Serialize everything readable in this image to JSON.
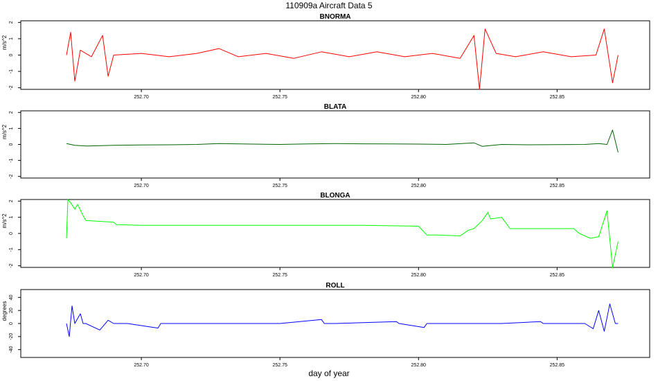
{
  "figure": {
    "title": "110909a   Aircraft Data 5",
    "xlabel": "day of year"
  },
  "chart_data": [
    {
      "type": "line",
      "title": "BNORMA",
      "ylabel": "m/s^2",
      "color": "#ff0000",
      "xlim": [
        252.6565,
        252.8834
      ],
      "ylim": [
        -2.1,
        2.1
      ],
      "xticks": [
        252.7,
        252.75,
        252.8,
        252.85
      ],
      "xtick_labels": [
        "252.70",
        "252.75",
        "252.80",
        "252.85"
      ],
      "yticks": [
        -2,
        -1,
        0,
        1,
        2
      ],
      "ytick_labels": [
        "-2",
        "-1",
        "0",
        "1",
        "2"
      ],
      "series": [
        {
          "x": [
            252.673,
            252.6745,
            252.676,
            252.678,
            252.682,
            252.686,
            252.688,
            252.69,
            252.7,
            252.71,
            252.72,
            252.728,
            252.735,
            252.745,
            252.755,
            252.765,
            252.775,
            252.785,
            252.795,
            252.805,
            252.815,
            252.82,
            252.822,
            252.824,
            252.828,
            252.835,
            252.845,
            252.855,
            252.864,
            252.867,
            252.87,
            252.872
          ],
          "y": [
            0.0,
            1.4,
            -1.6,
            0.3,
            -0.1,
            1.2,
            -1.3,
            0.0,
            0.1,
            -0.1,
            0.1,
            0.4,
            -0.1,
            0.1,
            -0.2,
            0.2,
            -0.1,
            0.2,
            -0.1,
            0.1,
            -0.2,
            1.2,
            -2.1,
            1.6,
            0.1,
            -0.1,
            0.2,
            -0.1,
            0.0,
            1.6,
            -1.7,
            0.0
          ]
        }
      ]
    },
    {
      "type": "line",
      "title": "BLATA",
      "ylabel": "m/s^2",
      "color": "#006400",
      "xlim": [
        252.6565,
        252.8834
      ],
      "ylim": [
        -2.1,
        2.1
      ],
      "xticks": [
        252.7,
        252.75,
        252.8,
        252.85
      ],
      "xtick_labels": [
        "252.70",
        "252.75",
        "252.80",
        "252.85"
      ],
      "yticks": [
        -2,
        -1,
        0,
        1,
        2
      ],
      "ytick_labels": [
        "-2",
        "-1",
        "0",
        "1",
        "2"
      ],
      "series": [
        {
          "x": [
            252.673,
            252.676,
            252.68,
            252.69,
            252.7,
            252.71,
            252.72,
            252.728,
            252.74,
            252.75,
            252.76,
            252.77,
            252.78,
            252.79,
            252.8,
            252.81,
            252.82,
            252.823,
            252.83,
            252.84,
            252.85,
            252.86,
            252.865,
            252.868,
            252.87,
            252.872
          ],
          "y": [
            0.05,
            -0.05,
            -0.1,
            -0.05,
            -0.03,
            -0.02,
            0.0,
            0.05,
            0.02,
            0.0,
            0.03,
            0.05,
            0.04,
            0.03,
            0.02,
            0.0,
            0.1,
            -0.12,
            0.0,
            -0.02,
            -0.01,
            0.0,
            0.05,
            0.0,
            0.9,
            -0.5
          ]
        }
      ]
    },
    {
      "type": "line",
      "title": "BLONGA",
      "ylabel": "m/s^2",
      "color": "#00ff00",
      "xlim": [
        252.6565,
        252.8834
      ],
      "ylim": [
        -2.1,
        2.1
      ],
      "xticks": [
        252.7,
        252.75,
        252.8,
        252.85
      ],
      "xtick_labels": [
        "252.70",
        "252.75",
        "252.80",
        "252.85"
      ],
      "yticks": [
        -2,
        -1,
        0,
        1,
        2
      ],
      "ytick_labels": [
        "-2",
        "-1",
        "0",
        "1",
        "2"
      ],
      "series": [
        {
          "x": [
            252.673,
            252.6735,
            252.6745,
            252.676,
            252.677,
            252.679,
            252.68,
            252.69,
            252.691,
            252.7,
            252.72,
            252.74,
            252.76,
            252.78,
            252.8,
            252.803,
            252.807,
            252.815,
            252.818,
            252.82,
            252.823,
            252.825,
            252.826,
            252.83,
            252.833,
            252.84,
            252.85,
            252.856,
            252.858,
            252.862,
            252.865,
            252.868,
            252.87,
            252.872
          ],
          "y": [
            -0.3,
            2.1,
            1.9,
            1.5,
            1.8,
            1.1,
            0.8,
            0.7,
            0.55,
            0.5,
            0.5,
            0.5,
            0.5,
            0.5,
            0.45,
            -0.1,
            -0.1,
            -0.15,
            0.2,
            0.3,
            0.8,
            1.3,
            0.9,
            1.0,
            0.3,
            0.3,
            0.3,
            0.3,
            0.0,
            -0.3,
            -0.2,
            1.4,
            -2.1,
            -0.5
          ]
        }
      ]
    },
    {
      "type": "line",
      "title": "ROLL",
      "ylabel": "degrees",
      "color": "#0000ff",
      "xlim": [
        252.6565,
        252.8834
      ],
      "ylim": [
        -52,
        52
      ],
      "xticks": [
        252.7,
        252.75,
        252.8,
        252.85
      ],
      "xtick_labels": [
        "252.70",
        "252.75",
        "252.80",
        "252.85"
      ],
      "yticks": [
        -40,
        -20,
        0,
        20,
        40
      ],
      "ytick_labels": [
        "-40",
        "-20",
        "0",
        "20",
        "40"
      ],
      "series": [
        {
          "x": [
            252.673,
            252.674,
            252.675,
            252.676,
            252.678,
            252.679,
            252.68,
            252.685,
            252.688,
            252.69,
            252.695,
            252.706,
            252.707,
            252.72,
            252.75,
            252.765,
            252.766,
            252.77,
            252.792,
            252.793,
            252.802,
            252.803,
            252.81,
            252.82,
            252.83,
            252.844,
            252.845,
            252.86,
            252.863,
            252.865,
            252.867,
            252.869,
            252.871,
            252.872
          ],
          "y": [
            0,
            -20,
            27,
            0,
            15,
            0,
            0,
            -10,
            5,
            0,
            0,
            -7,
            0,
            0,
            0,
            6,
            0,
            0,
            3,
            0,
            -6,
            0,
            0,
            0,
            0,
            3,
            0,
            0,
            -8,
            20,
            -12,
            30,
            0,
            0
          ]
        }
      ]
    }
  ]
}
